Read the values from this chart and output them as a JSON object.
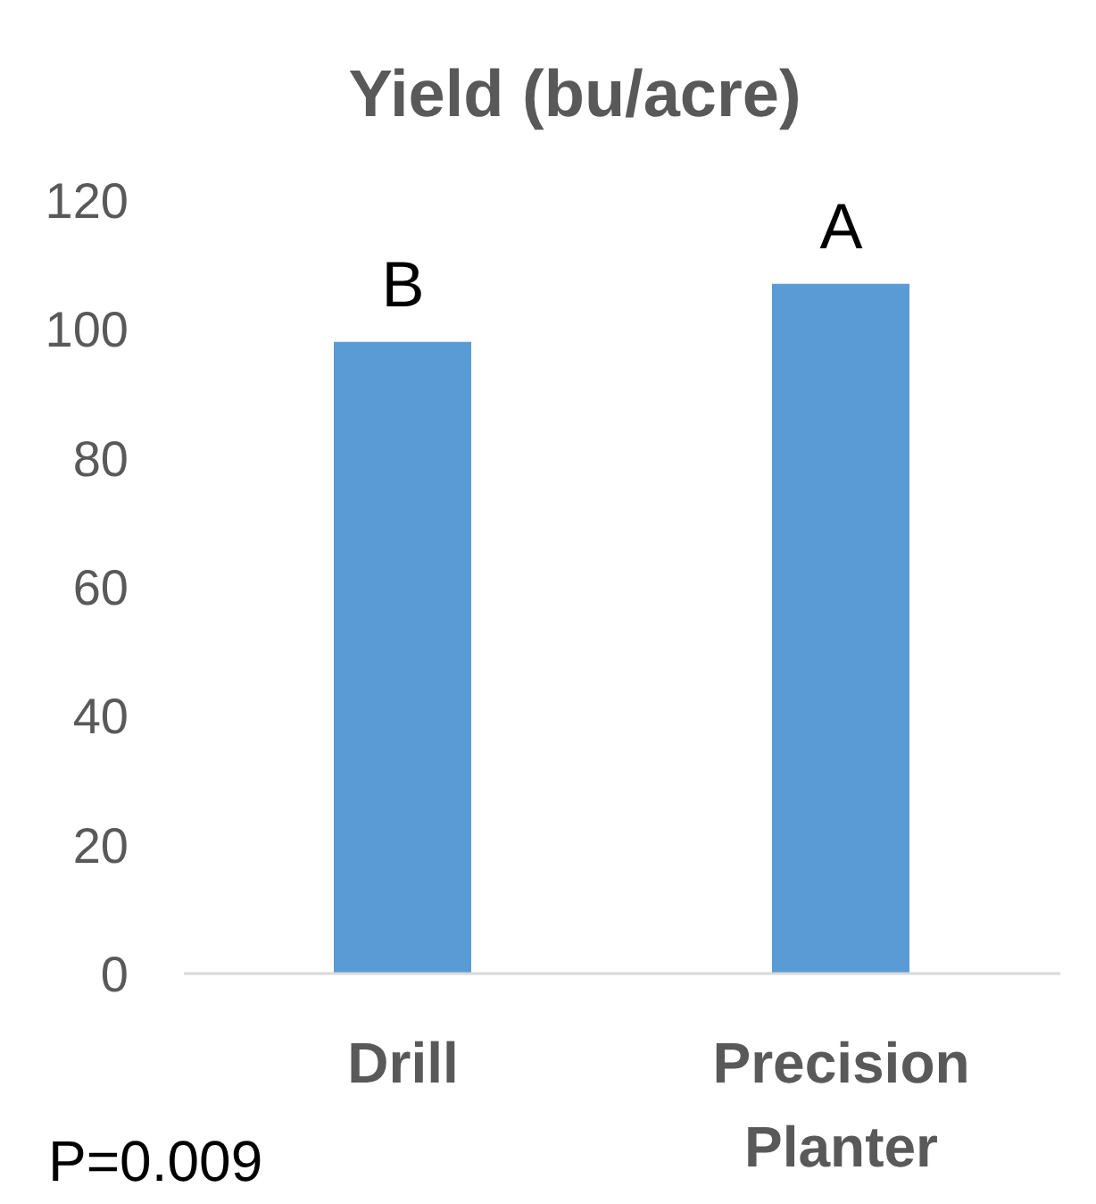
{
  "chart_data": {
    "type": "bar",
    "title": "Yield (bu/acre)",
    "categories": [
      "Drill",
      "Precision Planter"
    ],
    "values": [
      98,
      107
    ],
    "color": "#5b9bd5",
    "ylim": [
      0,
      120
    ],
    "yticks": [
      0,
      20,
      40,
      60,
      80,
      100,
      120
    ],
    "annotations": [
      {
        "text": "B",
        "x": "Drill",
        "y": 98
      },
      {
        "text": "A",
        "x": "Precision Planter",
        "y": 107
      },
      "P=0.009"
    ]
  }
}
